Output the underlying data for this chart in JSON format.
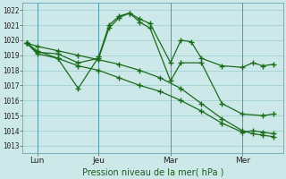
{
  "xlabel": "Pression niveau de la mer( hPa )",
  "bg_color": "#cce8e8",
  "line_color": "#1a6b1a",
  "grid_color": "#99cccc",
  "vline_color": "#5599aa",
  "ylim": [
    1012.5,
    1022.5
  ],
  "yticks": [
    1013,
    1014,
    1015,
    1016,
    1017,
    1018,
    1019,
    1020,
    1021,
    1022
  ],
  "xtick_labels": [
    "Lun",
    "Jeu",
    "Mar",
    "Mer"
  ],
  "xtick_positions": [
    0.5,
    3.5,
    7.0,
    10.5
  ],
  "series1_x": [
    0,
    0.5,
    1.5,
    2.5,
    3.5,
    4.0,
    4.5,
    5.0,
    5.5,
    6.0,
    7.0,
    7.5,
    8.0,
    8.5,
    9.5,
    10.5,
    11.0,
    11.5,
    12.0
  ],
  "series1_y": [
    1019.8,
    1019.2,
    1019.1,
    1018.5,
    1018.8,
    1020.8,
    1021.5,
    1021.8,
    1021.4,
    1021.1,
    1018.5,
    1020.0,
    1019.9,
    1018.8,
    1018.3,
    1018.2,
    1018.5,
    1018.3,
    1018.4
  ],
  "series2_x": [
    0,
    0.5,
    1.5,
    2.5,
    3.5,
    4.0,
    4.5,
    5.0,
    5.5,
    6.0,
    7.0,
    7.5,
    8.5,
    9.5,
    10.5,
    11.5,
    12.0
  ],
  "series2_y": [
    1019.8,
    1019.1,
    1018.8,
    1016.8,
    1018.9,
    1021.0,
    1021.6,
    1021.8,
    1021.2,
    1020.8,
    1017.3,
    1018.5,
    1018.5,
    1015.8,
    1015.1,
    1015.0,
    1015.1
  ],
  "series3_x": [
    0,
    0.5,
    1.5,
    2.5,
    3.5,
    4.5,
    5.5,
    6.5,
    7.5,
    8.5,
    9.5,
    10.5,
    11.0,
    11.5,
    12.0
  ],
  "series3_y": [
    1019.8,
    1019.3,
    1018.8,
    1018.3,
    1018.0,
    1017.5,
    1017.0,
    1016.6,
    1016.0,
    1015.3,
    1014.5,
    1013.9,
    1014.0,
    1013.9,
    1013.8
  ],
  "series4_x": [
    0,
    0.5,
    1.5,
    2.5,
    3.5,
    4.5,
    5.5,
    6.5,
    7.5,
    8.5,
    9.5,
    10.5,
    11.0,
    11.5,
    12.0
  ],
  "series4_y": [
    1019.8,
    1019.6,
    1019.3,
    1019.0,
    1018.7,
    1018.4,
    1018.0,
    1017.5,
    1016.8,
    1015.8,
    1014.8,
    1014.0,
    1013.8,
    1013.7,
    1013.6
  ],
  "xlim": [
    -0.2,
    12.5
  ]
}
